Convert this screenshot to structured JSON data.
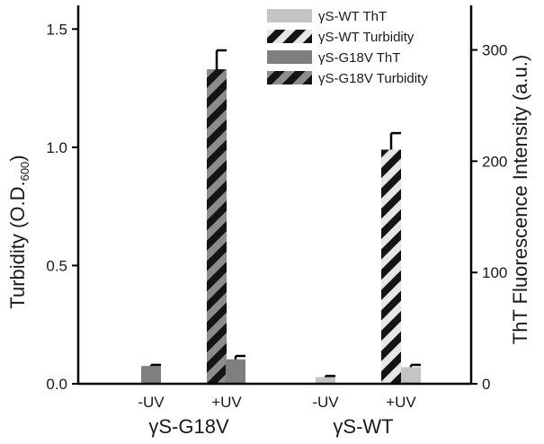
{
  "chart_data": {
    "type": "bar",
    "categories": [
      "-UV",
      "+UV",
      "-UV",
      "+UV"
    ],
    "groups": [
      {
        "label": "γS-G18V",
        "categories": [
          "-UV",
          "+UV"
        ]
      },
      {
        "label": "γS-WT",
        "categories": [
          "-UV",
          "+UV"
        ]
      }
    ],
    "ylabel": "Turbidity (O.D.",
    "ylabel_sub": "600",
    "ylabel_close": ")",
    "y2label": "ThT Fluorescence Intensity (a.u.)",
    "ylim": [
      0,
      1.6
    ],
    "y2lim": [
      0,
      340
    ],
    "yticks": [
      "0.0",
      "0.5",
      "1.0",
      "1.5"
    ],
    "y2ticks": [
      "0",
      "100",
      "200",
      "300"
    ],
    "legend": [
      {
        "name": "γS-WT ThT",
        "color": "#c4c4c4",
        "hatch": false
      },
      {
        "name": "γS-WT Turbidity",
        "color": "#e6e6e6",
        "hatch": true
      },
      {
        "name": "γS-G18V ThT",
        "color": "#7f7f7f",
        "hatch": false
      },
      {
        "name": "γS-G18V Turbidity",
        "color": "#8c8c8c",
        "hatch": true
      }
    ],
    "legend_position": "top-right",
    "series": [
      {
        "name": "γS-G18V Turbidity",
        "axis": "left",
        "values": [
          null,
          1.33,
          null,
          null
        ],
        "errors": [
          null,
          0.08,
          null,
          null
        ],
        "color": "#8c8c8c",
        "hatch": true
      },
      {
        "name": "γS-G18V ThT",
        "axis": "right",
        "values": [
          16,
          22,
          null,
          null
        ],
        "errors": [
          1,
          3,
          null,
          null
        ],
        "color": "#7f7f7f",
        "hatch": false
      },
      {
        "name": "γS-WT ThT",
        "axis": "right",
        "values": [
          null,
          null,
          6,
          15
        ],
        "errors": [
          null,
          null,
          1,
          2
        ],
        "color": "#c4c4c4",
        "hatch": false
      },
      {
        "name": "γS-WT Turbidity",
        "axis": "left",
        "values": [
          null,
          null,
          null,
          0.99
        ],
        "errors": [
          null,
          null,
          null,
          0.07
        ],
        "color": "#e6e6e6",
        "hatch": true
      }
    ]
  }
}
